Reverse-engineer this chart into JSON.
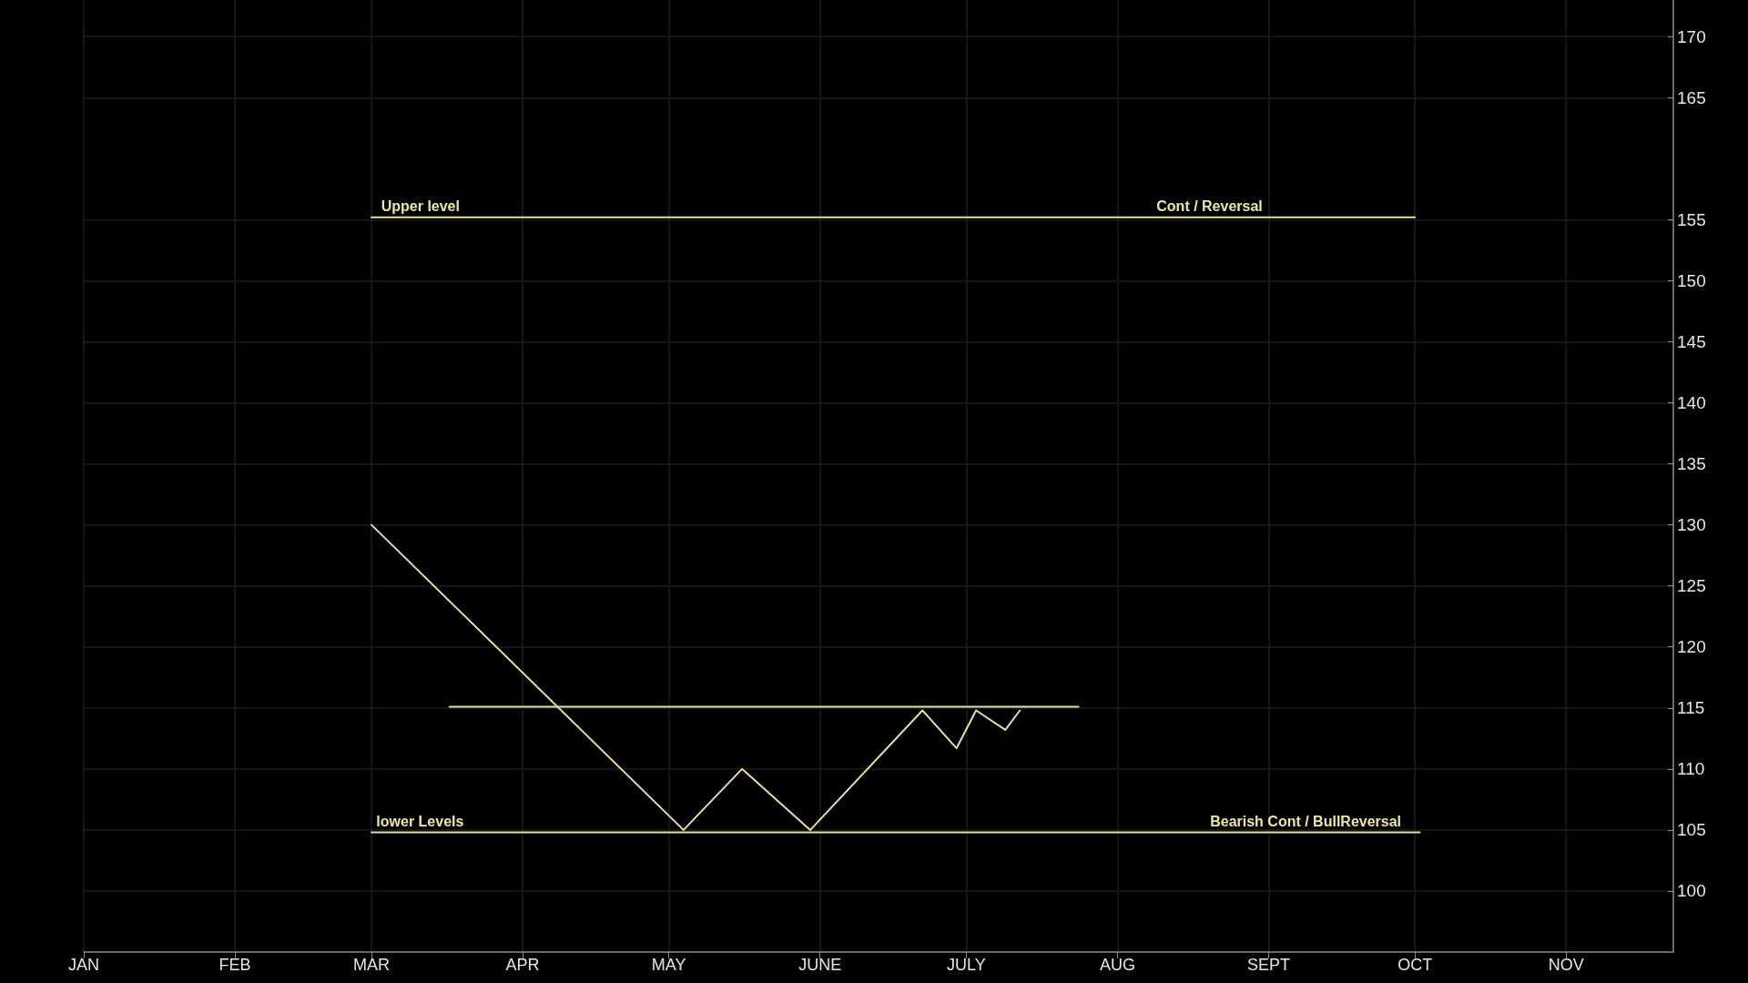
{
  "chart_data": {
    "type": "line",
    "series": [
      {
        "color": "#e6e0a0",
        "x": [
          "--03-01",
          "--05-04",
          "--05-16",
          "--05-30",
          "--06-22",
          "--06-29",
          "--07-03",
          "--07-09",
          "--07-12"
        ],
        "values": [
          130,
          105,
          110,
          105,
          114.8,
          111.7,
          114.8,
          113.2,
          114.8
        ]
      },
      {
        "color": "#e6e0a0",
        "x": [
          "--03-01",
          "--10-01"
        ],
        "values": [
          155.2,
          155.2
        ]
      },
      {
        "color": "#e6e0a0",
        "x": [
          "--03-17",
          "--07-24"
        ],
        "values": [
          115.1,
          115.1
        ]
      },
      {
        "color": "#e6e0a0",
        "x": [
          "--03-01",
          "--10-02"
        ],
        "values": [
          104.8,
          104.8
        ]
      }
    ],
    "xlim": [
      "--01-01",
      "--11-23"
    ],
    "xticks": [
      {
        "value": "--01-01",
        "label": "JAN"
      },
      {
        "value": "--02-01",
        "label": "FEB"
      },
      {
        "value": "--03-01",
        "label": "MAR"
      },
      {
        "value": "--04-01",
        "label": "APR"
      },
      {
        "value": "--05-01",
        "label": "MAY"
      },
      {
        "value": "--06-01",
        "label": "JUNE"
      },
      {
        "value": "--07-01",
        "label": "JULY"
      },
      {
        "value": "--08-01",
        "label": "AUG"
      },
      {
        "value": "--09-01",
        "label": "SEPT"
      },
      {
        "value": "--10-01",
        "label": "OCT"
      },
      {
        "value": "--11-01",
        "label": "NOV"
      }
    ],
    "ylim": [
      95,
      173
    ],
    "yticks": [
      100,
      105,
      110,
      115,
      120,
      125,
      130,
      135,
      140,
      145,
      150,
      155,
      165,
      170
    ],
    "annotations": [
      {
        "text": "Upper level",
        "x": "--03-03",
        "y": 155.2
      },
      {
        "text": "Cont / Reversal",
        "x": "--08-09",
        "y": 155.2
      },
      {
        "text": "lower Levels",
        "x": "--03-02",
        "y": 104.8
      },
      {
        "text": "Bearish Cont / BullReversal",
        "x": "--08-20",
        "y": 104.8
      }
    ],
    "grid": true,
    "marker": "none",
    "line_style": "solid"
  }
}
